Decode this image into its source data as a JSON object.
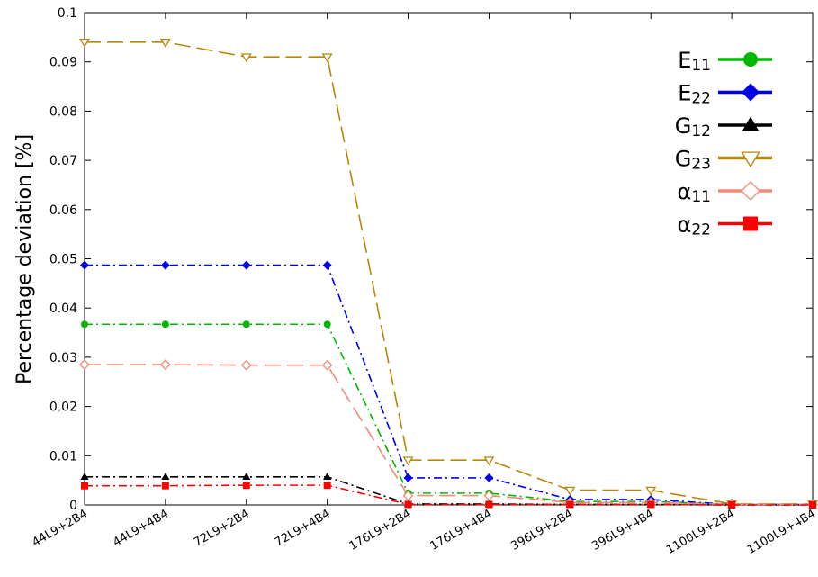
{
  "chart_data": {
    "type": "line",
    "title": "",
    "xlabel": "",
    "ylabel": "Percentage deviation [%]",
    "ylim": [
      0,
      0.1
    ],
    "yticks": [
      0,
      0.01,
      0.02,
      0.03,
      0.04,
      0.05,
      0.06,
      0.07,
      0.08,
      0.09,
      0.1
    ],
    "ytick_labels": [
      "0",
      "0.01",
      "0.02",
      "0.03",
      "0.04",
      "0.05",
      "0.06",
      "0.07",
      "0.08",
      "0.09",
      "0.1"
    ],
    "grid": false,
    "legend_position": "top-right",
    "categories": [
      "44L9+2B4",
      "44L9+4B4",
      "72L9+2B4",
      "72L9+4B4",
      "176L9+2B4",
      "176L9+4B4",
      "396L9+2B4",
      "396L9+4B4",
      "1100L9+2B4",
      "1100L9+4B4"
    ],
    "series": [
      {
        "name": "E11",
        "sym": "E",
        "sub": "11",
        "color": "#00b800",
        "marker": "circle",
        "dash": "dashdot",
        "values": [
          0.0367,
          0.0367,
          0.0367,
          0.0367,
          0.0024,
          0.0024,
          0.0007,
          0.0007,
          0.0001,
          0.0001
        ]
      },
      {
        "name": "E22",
        "sym": "E",
        "sub": "22",
        "color": "#0000e6",
        "marker": "diamond",
        "dash": "dashdot",
        "values": [
          0.0487,
          0.0487,
          0.0487,
          0.0487,
          0.0055,
          0.0055,
          0.0011,
          0.0011,
          0.0001,
          0.0001
        ]
      },
      {
        "name": "G12",
        "sym": "G",
        "sub": "12",
        "color": "#000000",
        "marker": "triangle",
        "dash": "dashdot",
        "values": [
          0.0057,
          0.0057,
          0.0057,
          0.0057,
          0.0002,
          0.0002,
          0.0001,
          0.0001,
          0.0,
          0.0
        ]
      },
      {
        "name": "G23",
        "sym": "G",
        "sub": "23",
        "color": "#b8860b",
        "marker": "triangle-down-open",
        "dash": "longdash",
        "values": [
          0.094,
          0.094,
          0.091,
          0.091,
          0.0091,
          0.0091,
          0.003,
          0.003,
          0.0002,
          0.0002
        ]
      },
      {
        "name": "α11",
        "sym": "α",
        "sub": "11",
        "color": "#f08a7a",
        "marker": "diamond-open",
        "dash": "longdash",
        "values": [
          0.0285,
          0.0285,
          0.0284,
          0.0284,
          0.0019,
          0.0019,
          0.0005,
          0.0005,
          0.0001,
          0.0001
        ]
      },
      {
        "name": "α22",
        "sym": "α",
        "sub": "22",
        "color": "#ff0000",
        "marker": "square",
        "dash": "dashdot",
        "values": [
          0.0039,
          0.0039,
          0.004,
          0.004,
          0.0001,
          0.0001,
          0.0001,
          0.0001,
          0.0,
          0.0
        ]
      }
    ]
  }
}
